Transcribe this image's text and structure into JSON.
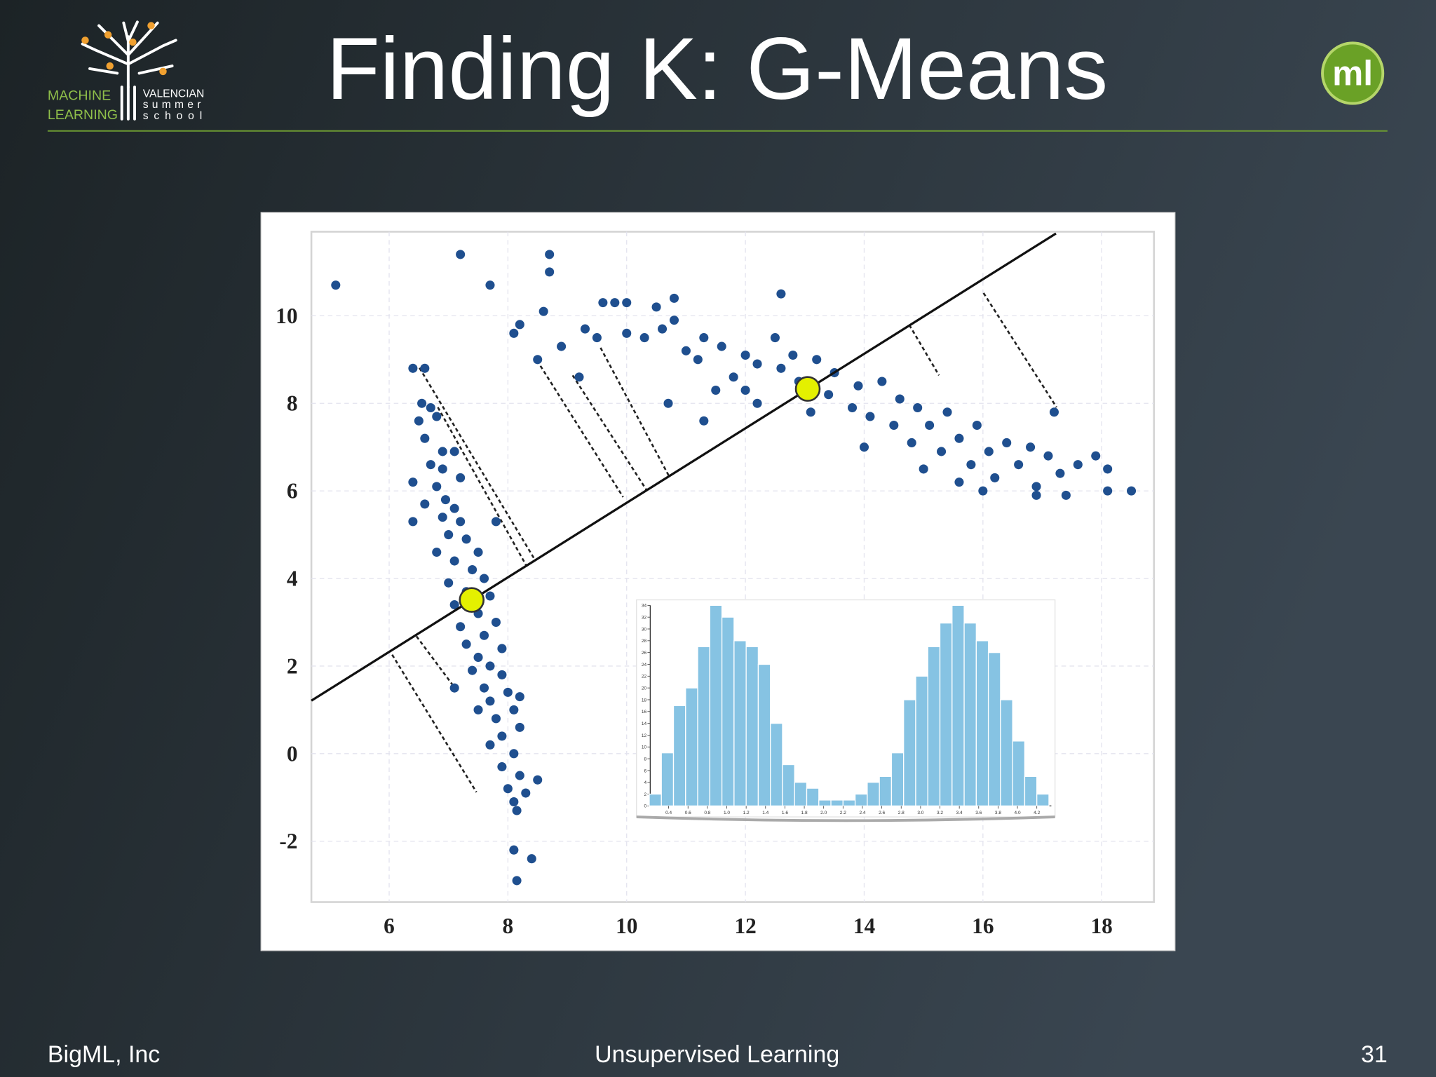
{
  "header": {
    "title": "Finding K: G-Means",
    "logo_left": {
      "line1": "MACHINE",
      "line2": "LEARNING",
      "right1": "VALENCIAN",
      "right2": "summer",
      "right3": "school"
    },
    "logo_right": "ml"
  },
  "footer": {
    "left": "BigML, Inc",
    "center": "Unsupervised Learning",
    "page": "31"
  },
  "chart_data": [
    {
      "type": "scatter",
      "xlim": [
        4.69,
        18.88
      ],
      "ylim": [
        -3.39,
        11.92
      ],
      "xticks": [
        6,
        8,
        10,
        12,
        14,
        16,
        18
      ],
      "yticks": [
        -2,
        0,
        2,
        4,
        6,
        8,
        10
      ],
      "grid": true,
      "points": {
        "color": "#1f4f8f",
        "x": [
          5.1,
          7.2,
          7.7,
          8.1,
          8.4,
          8.15,
          8.7,
          8.7,
          6.4,
          6.6,
          6.55,
          6.7,
          6.5,
          6.8,
          6.6,
          6.9,
          7.1,
          6.7,
          6.9,
          6.4,
          6.8,
          7.2,
          6.95,
          7.1,
          6.6,
          6.9,
          7.2,
          6.4,
          7.0,
          7.3,
          7.5,
          6.8,
          7.1,
          7.4,
          7.6,
          7.0,
          7.3,
          7.7,
          7.1,
          7.5,
          7.8,
          7.2,
          7.6,
          7.3,
          7.9,
          7.5,
          7.7,
          7.4,
          7.9,
          7.6,
          8.0,
          7.7,
          7.5,
          8.1,
          7.8,
          8.2,
          7.9,
          7.7,
          8.1,
          7.9,
          8.2,
          8.0,
          8.3,
          8.1,
          8.5,
          8.15,
          7.1,
          8.2,
          7.8,
          8.1,
          8.2,
          8.5,
          8.6,
          8.9,
          9.2,
          9.3,
          9.6,
          9.5,
          9.8,
          10.0,
          10.0,
          10.3,
          10.5,
          10.6,
          10.8,
          10.8,
          11.0,
          11.2,
          11.3,
          11.6,
          11.8,
          12.0,
          12.2,
          12.2,
          12.5,
          12.6,
          12.8,
          12.9,
          13.2,
          13.4,
          13.5,
          13.8,
          13.9,
          14.1,
          14.3,
          14.5,
          14.6,
          14.8,
          14.9,
          15.1,
          15.3,
          15.4,
          15.6,
          15.8,
          15.9,
          16.1,
          16.2,
          16.4,
          16.6,
          16.8,
          16.9,
          17.1,
          17.3,
          17.4,
          17.2,
          17.6,
          17.9,
          18.1,
          18.1,
          18.5,
          12.6,
          11.3,
          13.1,
          15.6,
          16.0,
          16.9,
          14.0,
          15.0,
          11.5,
          12.0,
          10.7
        ],
        "y": [
          10.7,
          11.4,
          10.7,
          -2.2,
          -2.4,
          -2.9,
          11.4,
          11.0,
          8.8,
          8.8,
          8.0,
          7.9,
          7.6,
          7.7,
          7.2,
          6.9,
          6.9,
          6.6,
          6.5,
          6.2,
          6.1,
          6.3,
          5.8,
          5.6,
          5.7,
          5.4,
          5.3,
          5.3,
          5.0,
          4.9,
          4.6,
          4.6,
          4.4,
          4.2,
          4.0,
          3.9,
          3.7,
          3.6,
          3.4,
          3.2,
          3.0,
          2.9,
          2.7,
          2.5,
          2.4,
          2.2,
          2.0,
          1.9,
          1.8,
          1.5,
          1.4,
          1.2,
          1.0,
          1.0,
          0.8,
          0.6,
          0.4,
          0.2,
          0.0,
          -0.3,
          -0.5,
          -0.8,
          -0.9,
          -1.1,
          -0.6,
          -1.3,
          1.5,
          1.3,
          5.3,
          9.6,
          9.8,
          9.0,
          10.1,
          9.3,
          8.6,
          9.7,
          10.3,
          9.5,
          10.3,
          9.6,
          10.3,
          9.5,
          10.2,
          9.7,
          10.4,
          9.9,
          9.2,
          9.0,
          9.5,
          9.3,
          8.6,
          9.1,
          8.9,
          8.0,
          9.5,
          8.8,
          9.1,
          8.5,
          9.0,
          8.2,
          8.7,
          7.9,
          8.4,
          7.7,
          8.5,
          7.5,
          8.1,
          7.1,
          7.9,
          7.5,
          6.9,
          7.8,
          7.2,
          6.6,
          7.5,
          6.9,
          6.3,
          7.1,
          6.6,
          7.0,
          6.1,
          6.8,
          6.4,
          5.9,
          7.8,
          6.6,
          6.8,
          6.5,
          6.0,
          6.0,
          10.5,
          7.6,
          7.8,
          6.2,
          6.0,
          5.9,
          7.0,
          6.5,
          8.3,
          8.3,
          8.0
        ]
      },
      "line": {
        "color": "#111111",
        "x": [
          4.69,
          17.23
        ],
        "y": [
          1.21,
          11.88
        ]
      },
      "projections": {
        "x": [
          6.51,
          6.82,
          8.49,
          9.09,
          9.56,
          14.76,
          16.01,
          6.05,
          6.46
        ],
        "y": [
          8.81,
          7.91,
          8.98,
          8.64,
          9.27,
          9.79,
          10.52,
          2.26,
          2.68
        ],
        "x_end": [
          8.44,
          8.32,
          9.94,
          10.33,
          10.72,
          15.26,
          17.24,
          7.47,
          7.08
        ],
        "y_end": [
          4.46,
          4.27,
          5.86,
          6.03,
          6.32,
          8.64,
          7.91,
          -0.88,
          1.55
        ]
      },
      "centroids": {
        "color": "#e4f000",
        "x": [
          7.39,
          13.05
        ],
        "y": [
          3.51,
          8.33
        ]
      }
    },
    {
      "type": "histogram",
      "color": "#86c3e3",
      "bins": [
        0.2,
        0.325,
        0.45,
        0.575,
        0.7,
        0.825,
        0.95,
        1.075,
        1.2,
        1.325,
        1.45,
        1.575,
        1.7,
        1.825,
        1.95,
        2.075,
        2.2,
        2.325,
        2.45,
        2.575,
        2.7,
        2.825,
        2.95,
        3.075,
        3.2,
        3.325,
        3.45,
        3.575,
        3.7,
        3.825,
        3.95,
        4.075,
        4.2,
        4.325
      ],
      "counts": [
        2,
        9,
        17,
        20,
        27,
        34,
        32,
        28,
        27,
        24,
        14,
        7,
        4,
        3,
        1,
        1,
        1,
        2,
        4,
        5,
        9,
        18,
        22,
        27,
        31,
        34,
        31,
        28,
        26,
        18,
        11,
        5,
        2
      ],
      "xlim": [
        0.21,
        4.35
      ],
      "ylim": [
        0,
        34
      ],
      "xticks": [
        0.4,
        0.6,
        0.8,
        {
          "value": 1.0,
          "label": "1.0"
        },
        1.2,
        1.4,
        1.6,
        1.8,
        {
          "value": 2.0,
          "label": "2.0"
        },
        2.2,
        2.4,
        2.6,
        2.8,
        {
          "value": 3.0,
          "label": "3.0"
        },
        3.2,
        3.4,
        3.6,
        3.8,
        {
          "value": 4.0,
          "label": "4.0"
        },
        4.2
      ],
      "yticks": [
        0,
        2,
        4,
        6,
        8,
        10,
        12,
        14,
        16,
        18,
        20,
        22,
        24,
        26,
        28,
        30,
        32,
        34
      ]
    }
  ]
}
